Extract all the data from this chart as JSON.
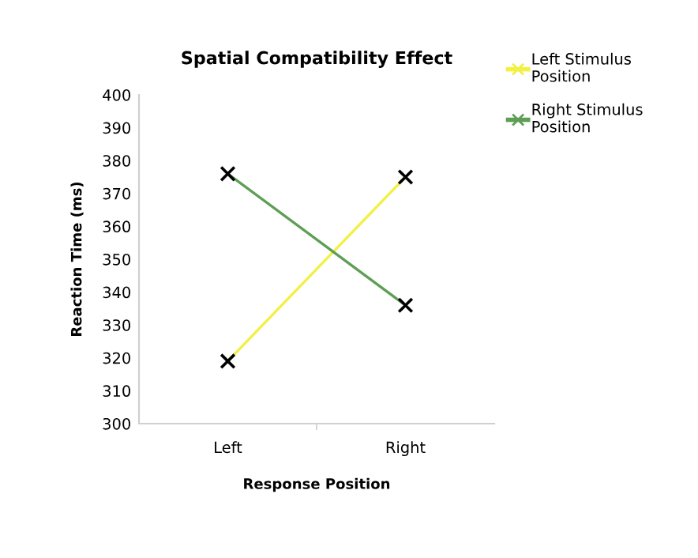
{
  "chart_data": {
    "type": "line",
    "title": "Spatial Compatibility Effect",
    "xlabel": "Response Position",
    "ylabel": "Reaction Time (ms)",
    "categories": [
      "Left",
      "Right"
    ],
    "series": [
      {
        "name": "Left Stimulus Position",
        "color": "#f2f044",
        "values": [
          319,
          375
        ]
      },
      {
        "name": "Right Stimulus Position",
        "color": "#5e9e55",
        "values": [
          376,
          336
        ]
      }
    ],
    "ylim": [
      300,
      400
    ],
    "yticks": [
      300,
      310,
      320,
      330,
      340,
      350,
      360,
      370,
      380,
      390,
      400
    ],
    "marker": "cross",
    "legend": "top right",
    "grid": false
  }
}
